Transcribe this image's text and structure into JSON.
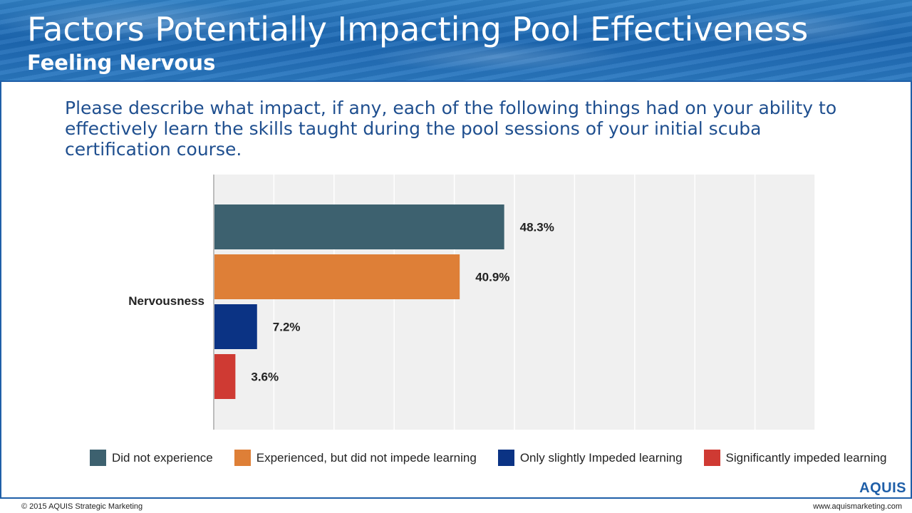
{
  "header": {
    "title": "Factors Potentially Impacting Pool Effectiveness",
    "subtitle": "Feeling Nervous"
  },
  "question": "Please describe what impact, if any, each of the following things had on your ability to effectively learn the skills taught during the pool sessions of your initial scuba certification course.",
  "chart_data": {
    "type": "bar",
    "orientation": "horizontal",
    "categories": [
      "Nervousness"
    ],
    "series": [
      {
        "name": "Did not experience",
        "values": [
          48.3
        ],
        "label": "48.3%",
        "color": "#3d616f"
      },
      {
        "name": "Experienced, but did not impede learning",
        "values": [
          40.9
        ],
        "label": "40.9%",
        "color": "#de7f37"
      },
      {
        "name": "Only slightly Impeded learning",
        "values": [
          7.2
        ],
        "label": "7.2%",
        "color": "#0b3384"
      },
      {
        "name": "Significantly impeded learning",
        "values": [
          3.6
        ],
        "label": "3.6%",
        "color": "#cf3a33"
      }
    ],
    "xlim": [
      0,
      100
    ],
    "grid": true,
    "legend": "bottom",
    "title": "",
    "xlabel": "",
    "ylabel": ""
  },
  "footer": {
    "copyright": "© 2015 AQUIS Strategic Marketing",
    "website": "www.aquismarketing.com",
    "logo": "AQUIS"
  }
}
